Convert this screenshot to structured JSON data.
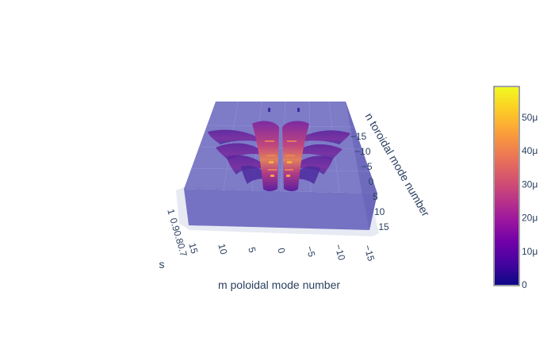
{
  "chart_data": {
    "type": "3d-volume",
    "title": "",
    "scene": {
      "x_axis": {
        "title": "m poloidal mode number",
        "ticks": [
          "15",
          "10",
          "5",
          "0",
          "−5",
          "−10",
          "−15"
        ],
        "range": [
          -15,
          15
        ]
      },
      "y_axis": {
        "title": "n toroidal mode number",
        "ticks": [
          "−15",
          "−10",
          "−5",
          "0",
          "5",
          "10",
          "15"
        ],
        "range": [
          -15,
          15
        ]
      },
      "z_axis": {
        "title": "s",
        "ticks": [
          "1",
          "0.9",
          "0.8",
          "0.7"
        ],
        "range": [
          0.7,
          1.0
        ]
      },
      "grid": true,
      "background": "rgba(100,110,200,0.85)"
    },
    "colorbar": {
      "ticks": [
        "0",
        "10μ",
        "20μ",
        "30μ",
        "40μ",
        "50μ"
      ],
      "values": [
        0,
        1e-05,
        2e-05,
        3e-05,
        4e-05,
        5e-05
      ],
      "max": 5.9e-05,
      "colorscale": [
        "#0d0887",
        "#46039f",
        "#7201a8",
        "#9c179e",
        "#bd3786",
        "#d8576b",
        "#ed7953",
        "#fb9f3a",
        "#fdca26",
        "#f0f921"
      ]
    }
  }
}
